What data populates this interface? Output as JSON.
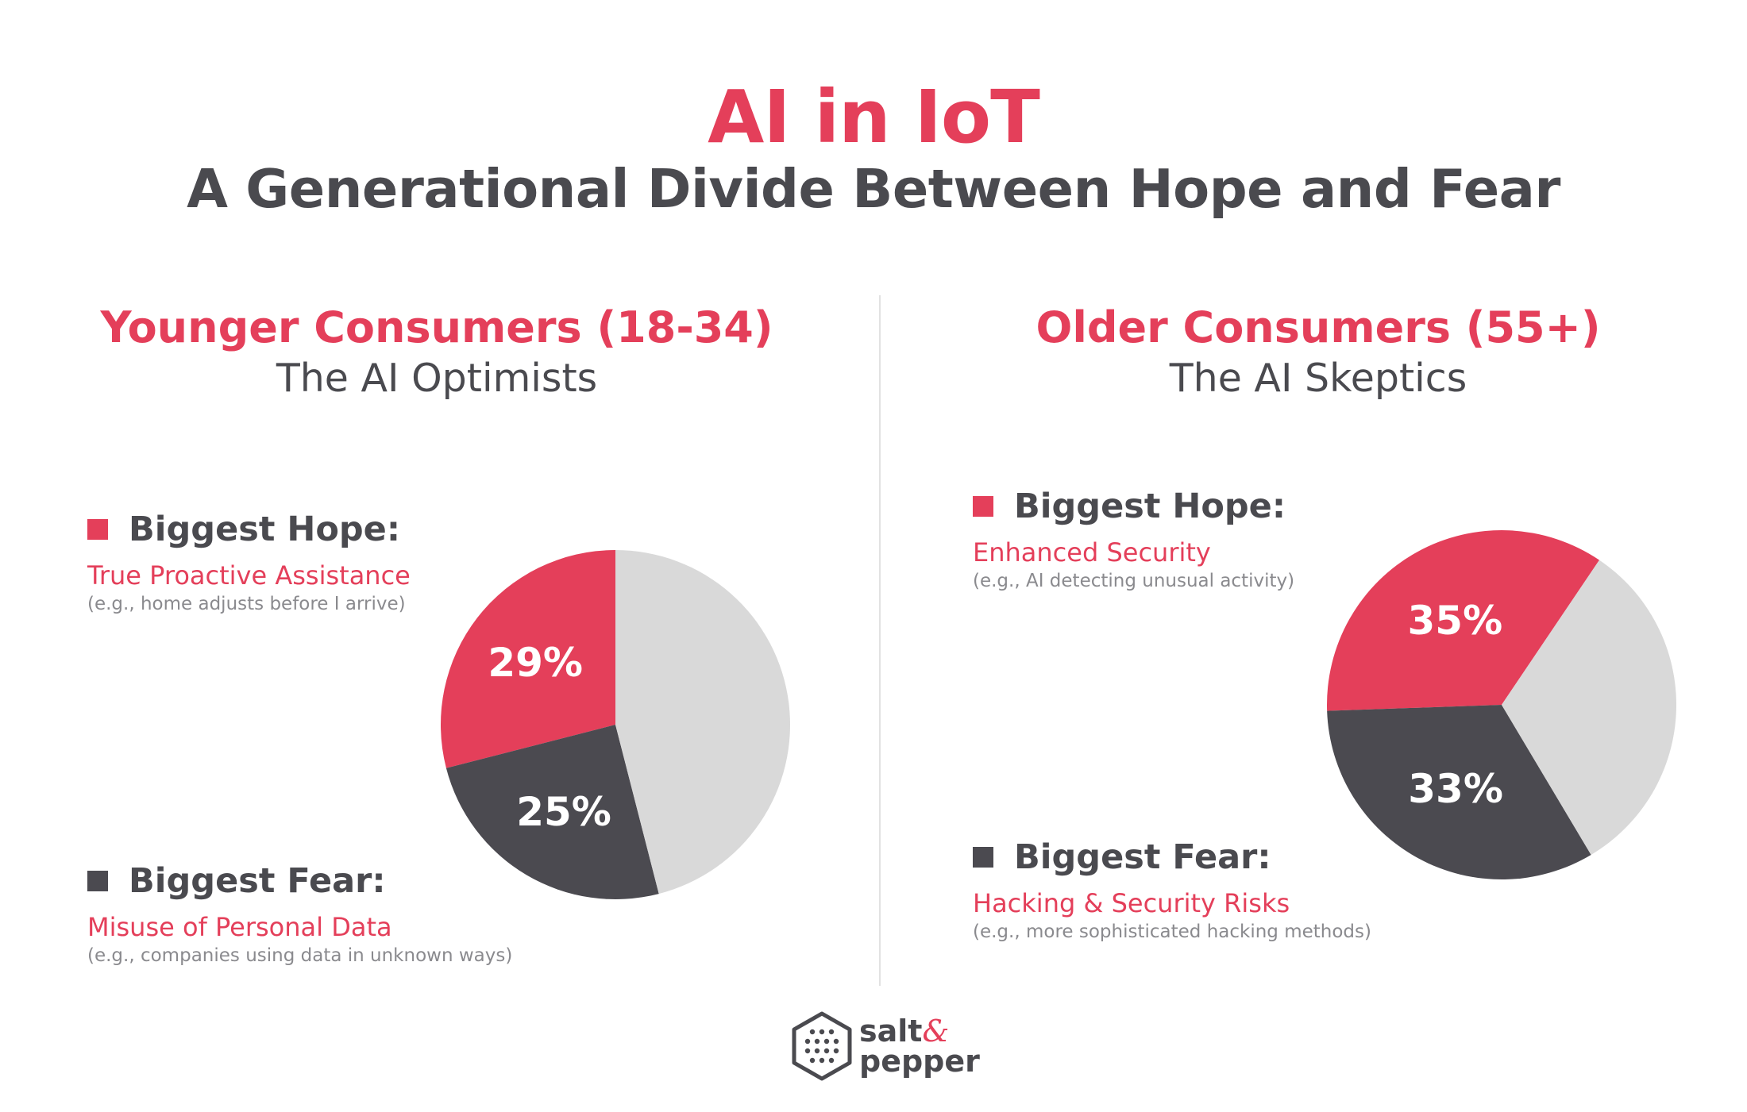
{
  "title": "AI in IoT",
  "subtitle": "A Generational Divide Between Hope and Fear",
  "colors": {
    "hope": "#e43f5a",
    "fear": "#4b4a50",
    "other": "#d9d9d9",
    "text_dark": "#4a4a4f",
    "text_muted": "#8a8a8e"
  },
  "panels": [
    {
      "group": "Younger Consumers (18-34)",
      "persona": "The AI Optimists",
      "hope_label": "Biggest Hope:",
      "hope_item": "True Proactive Assistance",
      "hope_example": "(e.g., home adjusts before I arrive)",
      "fear_label": "Biggest Fear:",
      "fear_item": "Misuse of Personal Data",
      "fear_example": "(e.g., companies using data in unknown ways)"
    },
    {
      "group": "Older Consumers (55+)",
      "persona": "The AI Skeptics",
      "hope_label": "Biggest Hope:",
      "hope_item": "Enhanced Security",
      "hope_example": "(e.g., AI detecting unusual activity)",
      "fear_label": "Biggest Fear:",
      "fear_item": "Hacking & Security Risks",
      "fear_example": "(e.g., more sophisticated hacking methods)"
    }
  ],
  "chart_data": [
    {
      "type": "pie",
      "title": "Younger Consumers (18-34)",
      "slices": [
        {
          "label": "Biggest Hope",
          "value": 29,
          "display": "29%",
          "color": "#e43f5a"
        },
        {
          "label": "Biggest Fear",
          "value": 25,
          "display": "25%",
          "color": "#4b4a50"
        },
        {
          "label": "",
          "value": 46,
          "display": "",
          "color": "#d9d9d9"
        }
      ]
    },
    {
      "type": "pie",
      "title": "Older Consumers (55+)",
      "slices": [
        {
          "label": "Biggest Hope",
          "value": 35,
          "display": "35%",
          "color": "#e43f5a"
        },
        {
          "label": "Biggest Fear",
          "value": 33,
          "display": "33%",
          "color": "#4b4a50"
        },
        {
          "label": "",
          "value": 32,
          "display": "",
          "color": "#d9d9d9"
        }
      ]
    }
  ],
  "brand": {
    "name_part1": "salt",
    "amp": "&",
    "name_part2": "pepper"
  }
}
